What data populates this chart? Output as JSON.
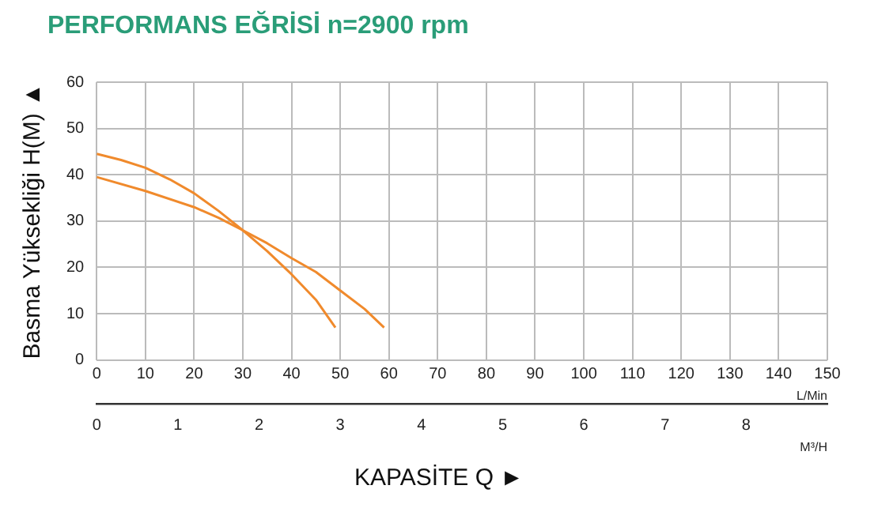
{
  "chart_data": {
    "type": "line",
    "title": "PERFORMANS EĞRİSİ n=2900 rpm",
    "xlabel": "KAPASİTE Q ►",
    "ylabel": "Basma Yüksekliği H(M) ▲",
    "x2label": "M³/H",
    "annotations": [
      "L/Min"
    ],
    "xlim": [
      0,
      150
    ],
    "xticks": [
      0,
      10,
      20,
      30,
      40,
      50,
      60,
      70,
      80,
      90,
      100,
      110,
      120,
      130,
      140,
      150
    ],
    "x2lim": [
      0,
      9
    ],
    "x2ticks": [
      0,
      1,
      2,
      3,
      4,
      5,
      6,
      7,
      8
    ],
    "ylim": [
      0,
      60
    ],
    "yticks": [
      0,
      10,
      20,
      30,
      40,
      50,
      60
    ],
    "grid": true,
    "legend": false,
    "marker": "none",
    "line_style": "solid",
    "series": [
      {
        "color": "#f08a2c",
        "x": [
          0,
          5,
          10,
          15,
          20,
          25,
          30,
          35,
          40,
          45,
          49
        ],
        "values": [
          44.5,
          43.2,
          41.5,
          39,
          36,
          32.2,
          28,
          23.5,
          18.5,
          13,
          7
        ]
      },
      {
        "color": "#f08a2c",
        "x": [
          0,
          10,
          20,
          25,
          30,
          35,
          40,
          45,
          50,
          55,
          59
        ],
        "values": [
          39.5,
          36.5,
          33,
          30.7,
          28,
          25.2,
          22,
          19,
          15,
          11,
          7
        ]
      }
    ]
  }
}
